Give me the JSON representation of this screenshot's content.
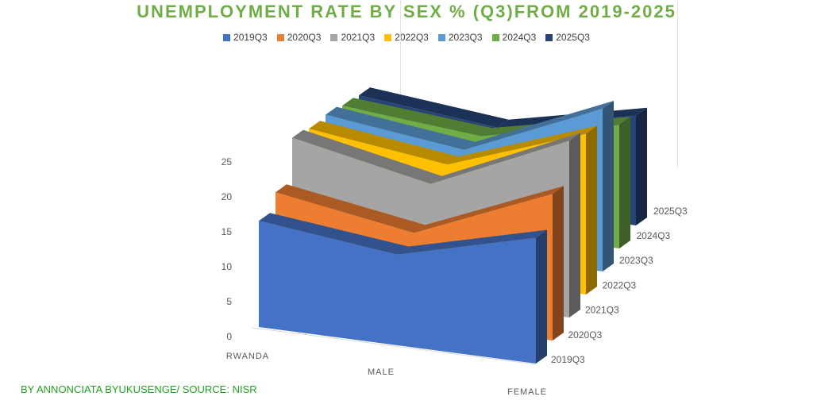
{
  "chart_data": {
    "type": "area",
    "title": "UNEMPLOYMENT RATE BY SEX % (Q3)FROM 2019-2025",
    "categories": [
      "RWANDA",
      "MALE",
      "FEMALE"
    ],
    "series": [
      {
        "name": "2019Q3",
        "color": "#4472c4",
        "values": [
          15.2,
          13.0,
          18.0
        ]
      },
      {
        "name": "2020Q3",
        "color": "#ed7d31",
        "values": [
          16.0,
          12.8,
          21.0
        ]
      },
      {
        "name": "2021Q3",
        "color": "#a5a5a5",
        "values": [
          20.5,
          16.5,
          25.3
        ]
      },
      {
        "name": "2022Q3",
        "color": "#ffc000",
        "values": [
          18.5,
          16.0,
          23.0
        ]
      },
      {
        "name": "2023Q3",
        "color": "#5b9bd5",
        "values": [
          17.2,
          14.8,
          23.3
        ]
      },
      {
        "name": "2024Q3",
        "color": "#70ad47",
        "values": [
          15.2,
          13.5,
          17.7
        ]
      },
      {
        "name": "2025Q3",
        "color": "#264478",
        "values": [
          13.4,
          11.4,
          15.7
        ]
      }
    ],
    "yticks": [
      0,
      5,
      10,
      15,
      20,
      25
    ],
    "ylim": [
      0,
      25
    ],
    "xlabel": "",
    "ylabel": "",
    "legend": "top"
  },
  "credit": "BY ANNONCIATA BYUKUSENGE/ SOURCE: NISR"
}
